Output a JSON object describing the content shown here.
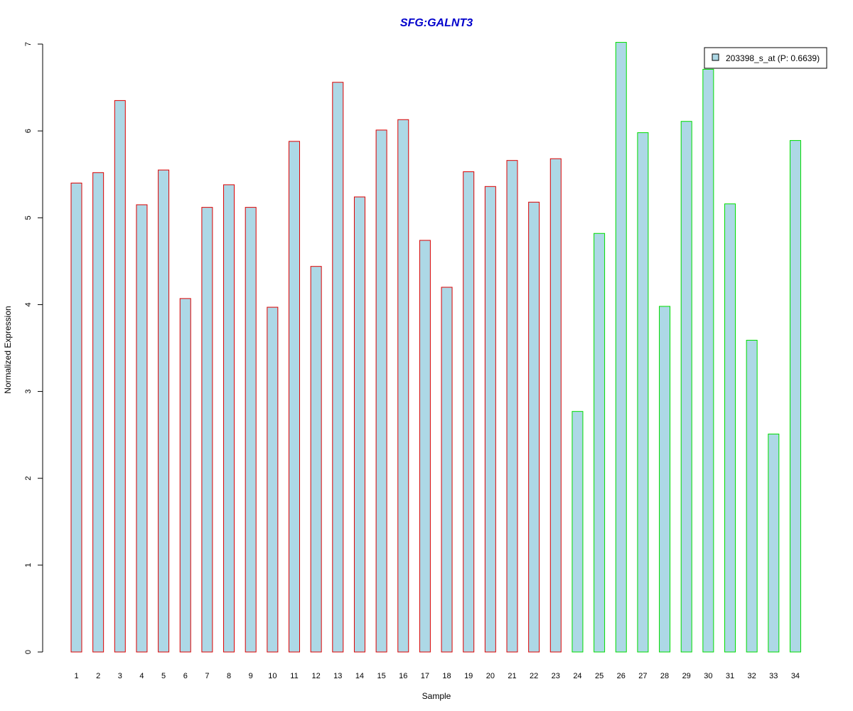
{
  "chart_data": {
    "type": "bar",
    "title": "SFG:GALNT3",
    "xlabel": "Sample",
    "ylabel": "Normalized Expression",
    "ylim": [
      0,
      7
    ],
    "yticks": [
      "0",
      "1",
      "2",
      "3",
      "4",
      "5",
      "6",
      "7"
    ],
    "categories": [
      "1",
      "2",
      "3",
      "4",
      "5",
      "6",
      "7",
      "8",
      "9",
      "10",
      "11",
      "12",
      "13",
      "14",
      "15",
      "16",
      "17",
      "18",
      "19",
      "20",
      "21",
      "22",
      "23",
      "24",
      "25",
      "26",
      "27",
      "28",
      "29",
      "30",
      "31",
      "32",
      "33",
      "34"
    ],
    "series": [
      {
        "name": "203398_s_at (P: 0.6639)",
        "values": [
          5.4,
          5.52,
          6.35,
          5.15,
          5.55,
          4.07,
          5.12,
          5.38,
          5.12,
          3.97,
          5.88,
          4.44,
          6.56,
          5.24,
          6.01,
          6.13,
          4.74,
          4.2,
          5.53,
          5.36,
          5.66,
          5.18,
          5.68,
          2.77,
          4.82,
          7.02,
          5.98,
          3.98,
          6.11,
          6.71,
          5.16,
          3.59,
          2.51,
          5.89
        ]
      }
    ],
    "group_sizes": [
      23,
      11
    ],
    "grid": false,
    "legend_position": "top-right",
    "colors": {
      "title": "#0000cc",
      "bar_fill": "#add8e6",
      "group1_border": "#dd0000",
      "group2_border": "#00dd00",
      "axis": "#000000"
    }
  }
}
